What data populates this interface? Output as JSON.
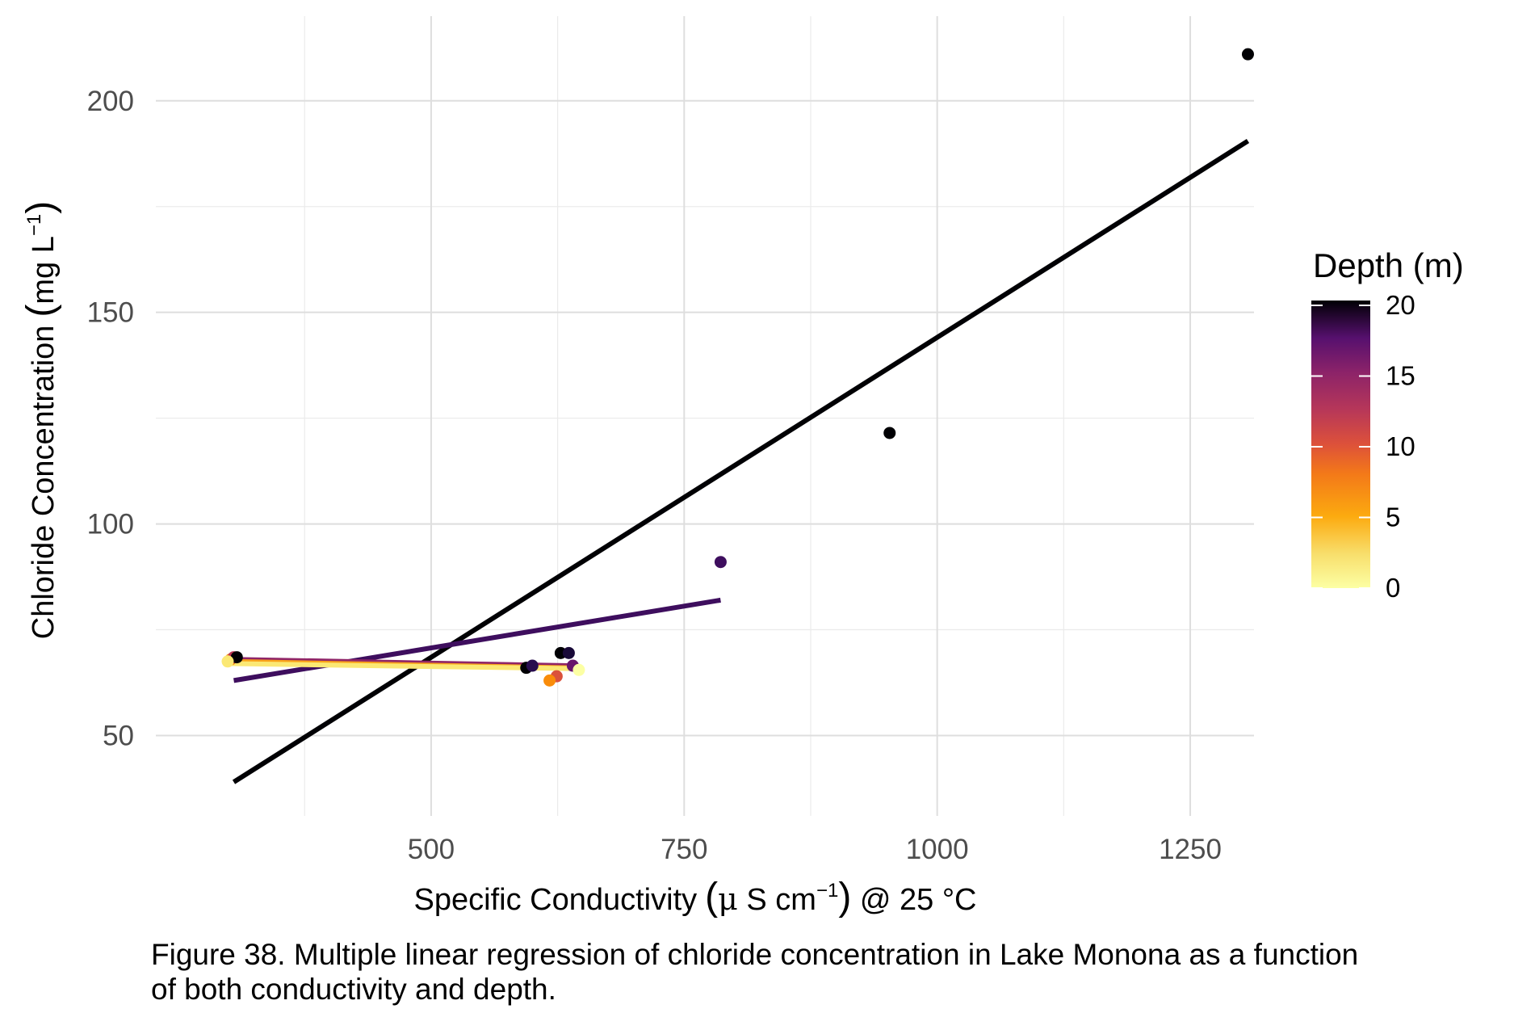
{
  "chart_data": {
    "type": "scatter",
    "xlabel": "Specific Conductivity",
    "xlabel_units": {
      "open": "(",
      "mu": "μ",
      "rest": " S cm",
      "sup": "−1",
      "close": ")",
      "tail": " @ 25 °C"
    },
    "ylabel": "Chloride Concentration",
    "ylabel_units": {
      "open": "(",
      "rest": "mg L",
      "sup": "−1",
      "close": ")"
    },
    "xlim": [
      228,
      1313
    ],
    "ylim": [
      31,
      220
    ],
    "x_ticks": [
      500,
      750,
      1000,
      1250
    ],
    "x_tick_labels": [
      "500",
      "750",
      "1000",
      "1250"
    ],
    "y_ticks": [
      50,
      100,
      150,
      200
    ],
    "y_tick_labels": [
      "50",
      "100",
      "150",
      "200"
    ],
    "grid": true,
    "legend": {
      "title": "Depth (m)",
      "position": "right",
      "range": [
        0,
        20
      ],
      "ticks": [
        0,
        5,
        10,
        15,
        20
      ],
      "tick_labels": [
        "0",
        "5",
        "10",
        "15",
        "20"
      ],
      "colormap": "inferno"
    },
    "points": [
      {
        "x": 1307,
        "y": 211,
        "depth": 20
      },
      {
        "x": 953,
        "y": 121.5,
        "depth": 20
      },
      {
        "x": 786,
        "y": 91,
        "depth": 16
      },
      {
        "x": 628,
        "y": 69.5,
        "depth": 20
      },
      {
        "x": 636,
        "y": 69.5,
        "depth": 18
      },
      {
        "x": 640,
        "y": 66.5,
        "depth": 14
      },
      {
        "x": 646,
        "y": 65.5,
        "depth": 0
      },
      {
        "x": 624,
        "y": 64,
        "depth": 8
      },
      {
        "x": 617,
        "y": 63,
        "depth": 5
      },
      {
        "x": 594,
        "y": 66,
        "depth": 20
      },
      {
        "x": 600,
        "y": 66.5,
        "depth": 17
      },
      {
        "x": 302,
        "y": 68,
        "depth": 5
      },
      {
        "x": 305,
        "y": 68.5,
        "depth": 10
      },
      {
        "x": 308,
        "y": 68.5,
        "depth": 20
      },
      {
        "x": 299,
        "y": 67.5,
        "depth": 1
      }
    ],
    "regression_lines": [
      {
        "depth": 20,
        "x": [
          305,
          1307
        ],
        "y": [
          39,
          190.5
        ]
      },
      {
        "depth": 16,
        "x": [
          305,
          786
        ],
        "y": [
          63,
          82
        ]
      },
      {
        "depth": 12,
        "x": [
          305,
          636
        ],
        "y": [
          68,
          66.5
        ]
      },
      {
        "depth": 4,
        "x": [
          302,
          636
        ],
        "y": [
          67.5,
          66
        ]
      },
      {
        "depth": 1,
        "x": [
          299,
          646
        ],
        "y": [
          67,
          65.8
        ]
      }
    ]
  },
  "caption": {
    "line1": "Figure 38. Multiple linear regression of chloride concentration in Lake Monona as a function",
    "line2": "of both conductivity and depth."
  }
}
